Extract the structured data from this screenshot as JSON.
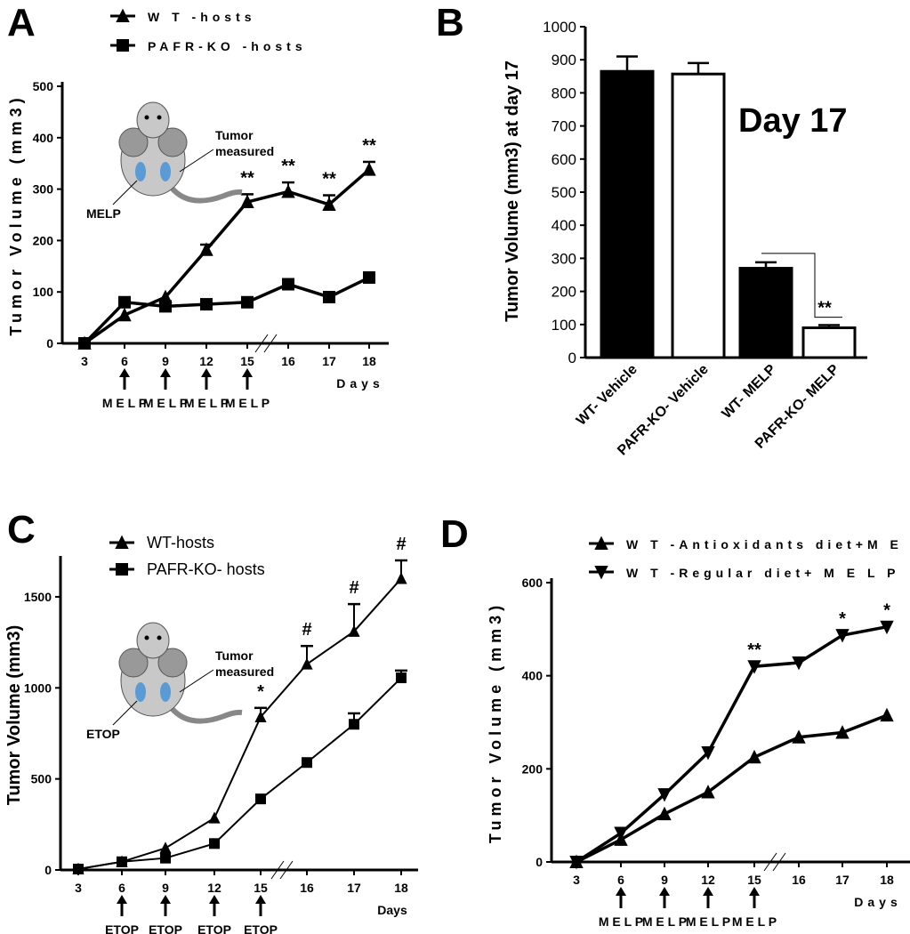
{
  "chart_data": [
    {
      "panel": "A",
      "type": "line",
      "xlabel": "Days",
      "ylabel": "Tumor Volume (mm3)",
      "ylim": [
        0,
        500
      ],
      "yticks": [
        0,
        100,
        200,
        300,
        400,
        500
      ],
      "categories": [
        "3",
        "6",
        "9",
        "12",
        "15",
        "16",
        "17",
        "18"
      ],
      "series": [
        {
          "name": "W T -hosts",
          "marker": "triangle-up",
          "values": [
            0,
            55,
            90,
            182,
            275,
            295,
            270,
            338
          ],
          "err": [
            0,
            0,
            0,
            10,
            15,
            18,
            18,
            15
          ]
        },
        {
          "name": "PAFR-KO -hosts",
          "marker": "square",
          "values": [
            0,
            80,
            72,
            76,
            80,
            115,
            90,
            128
          ],
          "err": [
            0,
            0,
            0,
            0,
            0,
            0,
            0,
            0
          ]
        }
      ],
      "annotations": [
        {
          "x": "15",
          "text": "**"
        },
        {
          "x": "16",
          "text": "**"
        },
        {
          "x": "17",
          "text": "**"
        },
        {
          "x": "18",
          "text": "**"
        }
      ],
      "treatment_days": [
        "6",
        "9",
        "12",
        "15"
      ],
      "treatment_label": "M E L P",
      "inset": {
        "label_treatment": "MELP",
        "label_tumor1": "Tumor",
        "label_tumor2": "measured"
      }
    },
    {
      "panel": "B",
      "type": "bar",
      "title": "Day 17",
      "ylabel": "Tumor Volume (mm3) at day 17",
      "ylim": [
        0,
        1000
      ],
      "yticks": [
        0,
        100,
        200,
        300,
        400,
        500,
        600,
        700,
        800,
        900,
        1000
      ],
      "categories": [
        "WT- Vehicle",
        "PAFR-KO- Vehicle",
        "WT- MELP",
        "PAFR-KO- MELP"
      ],
      "values": [
        865,
        857,
        270,
        90
      ],
      "err": [
        45,
        33,
        18,
        8
      ],
      "fills": [
        "#000000",
        "#ffffff",
        "#000000",
        "#ffffff"
      ],
      "annotations": [
        {
          "between": [
            "WT- MELP",
            "PAFR-KO- MELP"
          ],
          "text": "**"
        }
      ]
    },
    {
      "panel": "C",
      "type": "line",
      "xlabel": "Days",
      "ylabel": "Tumor Volume (mm3)",
      "ylim": [
        0,
        1700
      ],
      "yticks": [
        0,
        500,
        1000,
        1500
      ],
      "categories": [
        "3",
        "6",
        "9",
        "12",
        "15",
        "16",
        "17",
        "18"
      ],
      "series": [
        {
          "name": "WT-hosts",
          "marker": "triangle-up",
          "values": [
            5,
            45,
            120,
            285,
            840,
            1130,
            1310,
            1600
          ],
          "err": [
            0,
            0,
            0,
            0,
            50,
            100,
            150,
            100
          ]
        },
        {
          "name": "PAFR-KO- hosts",
          "marker": "square",
          "values": [
            5,
            45,
            65,
            145,
            390,
            590,
            800,
            1055
          ],
          "err": [
            0,
            0,
            0,
            0,
            0,
            0,
            60,
            40
          ]
        }
      ],
      "annotations": [
        {
          "x": "15",
          "text": "*"
        },
        {
          "x": "16",
          "text": "#"
        },
        {
          "x": "17",
          "text": "#"
        },
        {
          "x": "18",
          "text": "#"
        }
      ],
      "treatment_days": [
        "6",
        "9",
        "12",
        "15"
      ],
      "treatment_label": "ETOP",
      "inset": {
        "label_treatment": "ETOP",
        "label_tumor1": "Tumor",
        "label_tumor2": "measured"
      }
    },
    {
      "panel": "D",
      "type": "line",
      "xlabel": "Days",
      "ylabel": "Tumor Volume (mm3)",
      "ylim": [
        0,
        600
      ],
      "yticks": [
        0,
        200,
        400,
        600
      ],
      "categories": [
        "3",
        "6",
        "9",
        "12",
        "15",
        "16",
        "17",
        "18"
      ],
      "series": [
        {
          "name": "W T -Antioxidants diet+M E L P",
          "marker": "triangle-up",
          "values": [
            0,
            48,
            103,
            150,
            225,
            268,
            278,
            315
          ],
          "err": [
            0,
            0,
            0,
            0,
            0,
            0,
            0,
            0
          ]
        },
        {
          "name": "W T -Regular diet+ M E L P",
          "marker": "triangle-down",
          "values": [
            0,
            62,
            145,
            235,
            420,
            428,
            487,
            505
          ],
          "err": [
            0,
            0,
            0,
            0,
            0,
            0,
            0,
            0
          ]
        }
      ],
      "annotations": [
        {
          "x": "15",
          "text": "**"
        },
        {
          "x": "17",
          "text": "*"
        },
        {
          "x": "18",
          "text": "*"
        }
      ],
      "treatment_days": [
        "6",
        "9",
        "12",
        "15"
      ],
      "treatment_label": "M E L P"
    }
  ],
  "panel_labels": [
    "A",
    "B",
    "C",
    "D"
  ]
}
